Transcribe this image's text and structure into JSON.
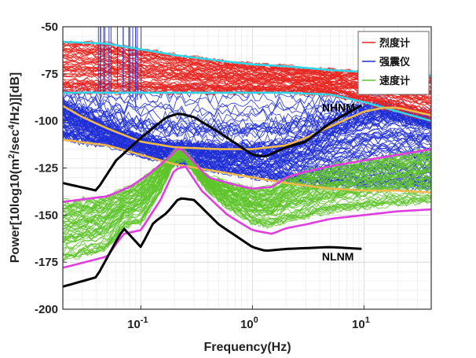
{
  "chart_data": {
    "type": "line",
    "title": "",
    "xlabel": "Frequency(Hz)",
    "ylabel_parts": [
      "Power[10log10(m",
      "2",
      "/sec",
      "4",
      "/Hz)][dB]"
    ],
    "xscale": "log",
    "xlim": [
      0.02,
      40
    ],
    "ylim": [
      -200,
      -50
    ],
    "grid": true,
    "x_ticks": [
      {
        "value": 0.1,
        "base": "10",
        "exp": "-1"
      },
      {
        "value": 1,
        "base": "10",
        "exp": "0"
      },
      {
        "value": 10,
        "base": "10",
        "exp": "1"
      }
    ],
    "y_ticks": [
      -50,
      -75,
      -100,
      -125,
      -150,
      -175,
      -200
    ],
    "y_tick_labels": [
      "-50",
      "-75",
      "-100",
      "-125",
      "-150",
      "-175",
      "-200"
    ],
    "legend": {
      "position": "top-right",
      "entries": [
        {
          "name": "烈度计",
          "color": "#e8251f"
        },
        {
          "name": "强震仪",
          "color": "#1f2ed6"
        },
        {
          "name": "速度计",
          "color": "#5ec42a"
        }
      ]
    },
    "annotations": [
      {
        "text": "NHNM",
        "x": 4.2,
        "y": -95
      },
      {
        "text": "NLNM",
        "x": 4.2,
        "y": -174
      }
    ],
    "series": [
      {
        "group": "烈度计",
        "color": "#e8251f",
        "kind": "band_median",
        "x": [
          0.02,
          0.05,
          0.1,
          0.2,
          0.5,
          1,
          2,
          5,
          10,
          20,
          40
        ],
        "y": [
          -68,
          -70,
          -71,
          -72,
          -73,
          -75,
          -77,
          -79,
          -80,
          -81,
          -82
        ]
      },
      {
        "group": "烈度计",
        "color": "#33d4e6",
        "kind": "upper_bound",
        "x": [
          0.02,
          0.05,
          0.1,
          0.2,
          0.5,
          1,
          2,
          5,
          10,
          20,
          40
        ],
        "y": [
          -58,
          -59,
          -62,
          -65,
          -68,
          -70,
          -71,
          -73,
          -74,
          -75,
          -76
        ]
      },
      {
        "group": "烈度计",
        "color": "#33d4e6",
        "kind": "lower_bound",
        "x": [
          0.02,
          0.05,
          0.1,
          0.2,
          0.5,
          1,
          2,
          5,
          10,
          20,
          40
        ],
        "y": [
          -85,
          -85,
          -85,
          -85,
          -85,
          -85,
          -85,
          -86,
          -90,
          -95,
          -100
        ]
      },
      {
        "group": "强震仪",
        "color": "#f0b84a",
        "kind": "upper_bound",
        "x": [
          0.02,
          0.03,
          0.05,
          0.1,
          0.2,
          0.5,
          1,
          2,
          3,
          5,
          7,
          10,
          15,
          20,
          40
        ],
        "y": [
          -92,
          -98,
          -104,
          -111,
          -114,
          -115,
          -115,
          -113,
          -109,
          -103,
          -99,
          -95,
          -93,
          -93,
          -97
        ]
      },
      {
        "group": "强震仪",
        "color": "#f0b84a",
        "kind": "lower_bound",
        "x": [
          0.02,
          0.05,
          0.1,
          0.2,
          0.5,
          1,
          2,
          5,
          10,
          20,
          40
        ],
        "y": [
          -110,
          -113,
          -118,
          -123,
          -127,
          -130,
          -133,
          -136,
          -137,
          -137,
          -138
        ]
      },
      {
        "group": "速度计",
        "color": "#e03fe0",
        "kind": "upper_bound",
        "x": [
          0.02,
          0.05,
          0.08,
          0.12,
          0.18,
          0.22,
          0.27,
          0.4,
          0.7,
          1,
          1.5,
          2,
          3,
          5,
          10,
          20,
          40
        ],
        "y": [
          -143,
          -140,
          -135,
          -128,
          -119,
          -114,
          -119,
          -130,
          -134,
          -136,
          -135,
          -130,
          -127,
          -124,
          -121,
          -118,
          -115
        ]
      },
      {
        "group": "速度计",
        "color": "#e03fe0",
        "kind": "lower_bound",
        "x": [
          0.02,
          0.05,
          0.07,
          0.1,
          0.15,
          0.2,
          0.25,
          0.35,
          0.6,
          1,
          1.5,
          2,
          3,
          5,
          10,
          20,
          40
        ],
        "y": [
          -178,
          -172,
          -160,
          -158,
          -142,
          -126,
          -124,
          -137,
          -150,
          -158,
          -160,
          -157,
          -155,
          -152,
          -150,
          -148,
          -147
        ]
      },
      {
        "group": "NHNM",
        "color": "#000000",
        "kind": "model",
        "x": [
          0.02,
          0.04,
          0.06,
          0.1,
          0.17,
          0.22,
          0.3,
          0.5,
          1,
          1.3,
          2,
          3,
          5,
          7,
          10
        ],
        "y": [
          -133,
          -137,
          -121,
          -109,
          -98,
          -96,
          -98,
          -106,
          -118,
          -119,
          -114,
          -111,
          -101,
          -96,
          -91
        ]
      },
      {
        "group": "NLNM",
        "color": "#000000",
        "kind": "model",
        "x": [
          0.02,
          0.04,
          0.06,
          0.07,
          0.1,
          0.13,
          0.17,
          0.22,
          0.3,
          0.5,
          1,
          1.3,
          2,
          5,
          10
        ],
        "y": [
          -188,
          -183,
          -164,
          -157,
          -167,
          -154,
          -149,
          -141,
          -142,
          -155,
          -167,
          -169,
          -168,
          -167,
          -168
        ]
      }
    ]
  }
}
